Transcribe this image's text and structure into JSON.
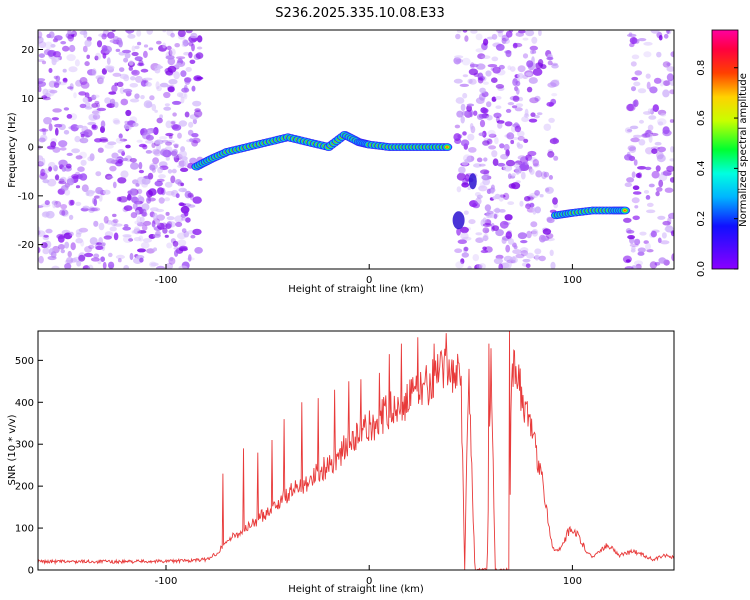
{
  "title": "S236.2025.335.10.08.E33",
  "chart_data": [
    {
      "type": "heatmap",
      "xlabel": "Height of straight line (km)",
      "ylabel": "Frequency (Hz)",
      "xlim": [
        -163,
        150
      ],
      "ylim": [
        -25,
        24
      ],
      "xticks": [
        -100,
        0,
        100
      ],
      "yticks": [
        20,
        10,
        0,
        -10,
        -20
      ],
      "xtick_labels": [
        "-100",
        "0",
        "100"
      ],
      "ytick_labels": [
        "20",
        "10",
        "0",
        "-10",
        "-20"
      ],
      "colorbar": {
        "label": "Normalized spectral amplitude",
        "range": [
          0,
          0.95
        ],
        "ticks": [
          0.0,
          0.2,
          0.4,
          0.6,
          0.8
        ],
        "tick_labels": [
          "0.0",
          "0.2",
          "0.4",
          "0.6",
          "0.8"
        ],
        "colormap": "rainbow"
      },
      "noise_regions": [
        {
          "x": [
            -163,
            -83
          ],
          "density": 1.0
        },
        {
          "x": [
            43,
            92
          ],
          "density": 0.9
        },
        {
          "x": [
            127,
            150
          ],
          "density": 0.75
        }
      ],
      "ridges": [
        {
          "name": "main signal",
          "points": [
            [
              -85,
              -4
            ],
            [
              -78,
              -2.5
            ],
            [
              -70,
              -1
            ],
            [
              -60,
              0
            ],
            [
              -50,
              1
            ],
            [
              -40,
              2
            ],
            [
              -30,
              1
            ],
            [
              -20,
              0
            ],
            [
              -12,
              2.5
            ],
            [
              -5,
              1
            ],
            [
              0,
              0.5
            ],
            [
              10,
              0
            ],
            [
              20,
              0
            ],
            [
              30,
              0
            ],
            [
              40,
              0
            ]
          ],
          "peak": 0.95
        },
        {
          "name": "secondary signal",
          "points": [
            [
              92,
              -14
            ],
            [
              100,
              -13.5
            ],
            [
              110,
              -13
            ],
            [
              120,
              -13
            ],
            [
              127,
              -13
            ]
          ],
          "peak": 0.9
        }
      ]
    },
    {
      "type": "line",
      "xlabel": "Height of straight line (km)",
      "ylabel": "SNR (10 * v/v)",
      "xlim": [
        -163,
        150
      ],
      "ylim": [
        0,
        570
      ],
      "xticks": [
        -100,
        0,
        100
      ],
      "yticks": [
        0,
        100,
        200,
        300,
        400,
        500
      ],
      "xtick_labels": [
        "-100",
        "0",
        "100"
      ],
      "ytick_labels": [
        "0",
        "100",
        "200",
        "300",
        "400",
        "500"
      ],
      "color": "#e83a3a",
      "envelope_x": [
        -163,
        -120,
        -90,
        -80,
        -75,
        -70,
        -60,
        -50,
        -40,
        -30,
        -20,
        -10,
        0,
        10,
        20,
        30,
        40,
        44,
        45,
        47,
        49,
        52,
        55,
        58,
        60,
        62,
        65,
        69,
        70,
        72,
        75,
        80,
        85,
        88,
        90,
        92,
        95,
        98,
        100,
        103,
        107,
        110,
        113,
        117,
        120,
        123,
        127,
        130,
        135,
        140,
        145,
        150
      ],
      "envelope_y": [
        20,
        20,
        22,
        25,
        40,
        70,
        100,
        140,
        180,
        215,
        250,
        300,
        340,
        380,
        410,
        450,
        480,
        480,
        480,
        0,
        490,
        0,
        0,
        0,
        490,
        0,
        0,
        0,
        500,
        480,
        420,
        330,
        220,
        120,
        60,
        45,
        60,
        90,
        100,
        80,
        45,
        30,
        45,
        60,
        50,
        35,
        40,
        45,
        35,
        25,
        35,
        30
      ],
      "spikes": [
        {
          "x": -72,
          "y": 230
        },
        {
          "x": -62,
          "y": 290
        },
        {
          "x": -55,
          "y": 280
        },
        {
          "x": -48,
          "y": 310
        },
        {
          "x": -42,
          "y": 360
        },
        {
          "x": -33,
          "y": 400
        },
        {
          "x": -25,
          "y": 410
        },
        {
          "x": -17,
          "y": 430
        },
        {
          "x": -10,
          "y": 450
        },
        {
          "x": -4,
          "y": 455
        },
        {
          "x": 5,
          "y": 470
        },
        {
          "x": 10,
          "y": 515
        },
        {
          "x": 16,
          "y": 540
        },
        {
          "x": 24,
          "y": 555
        },
        {
          "x": 32,
          "y": 540
        },
        {
          "x": 38,
          "y": 565
        },
        {
          "x": 59,
          "y": 540
        },
        {
          "x": 69,
          "y": 570
        }
      ]
    }
  ]
}
